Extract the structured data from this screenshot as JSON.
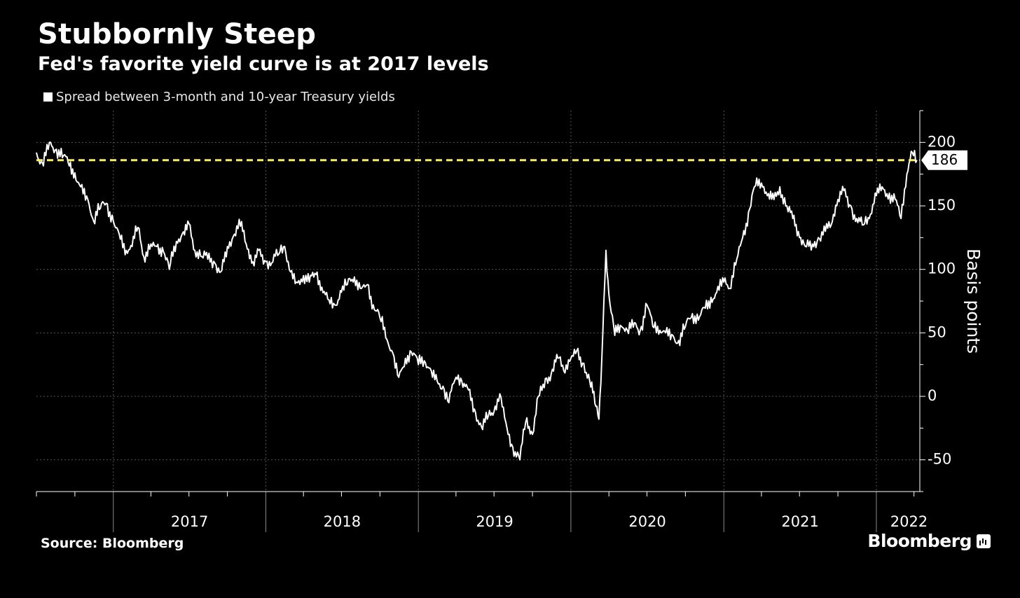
{
  "header": {
    "title": "Stubbornly Steep",
    "subtitle": "Fed's favorite yield curve is at 2017 levels"
  },
  "footer": {
    "source": "Source: Bloomberg",
    "brand": "Bloomberg",
    "brand_icon": "bar-chart-icon"
  },
  "colors": {
    "background": "#000000",
    "series": "#ffffff",
    "reference_line": "#f5ec6a",
    "grid": "#555555"
  },
  "chart_data": {
    "type": "line",
    "title": "Stubbornly Steep",
    "subtitle": "Fed's favorite yield curve is at 2017 levels",
    "ylabel": "Basis points",
    "ylim": [
      -75,
      225
    ],
    "yticks": [
      -50,
      0,
      50,
      100,
      150,
      200
    ],
    "x_range": [
      "2016-07-01",
      "2022-04-15"
    ],
    "x_year_labels": [
      "2017",
      "2018",
      "2019",
      "2020",
      "2021",
      "2022"
    ],
    "grid": true,
    "legend": "top-left",
    "reference_line": {
      "value": 186,
      "label": "186",
      "style": "dashed"
    },
    "series": [
      {
        "name": "Spread between 3-month and 10-year Treasury yields",
        "points": [
          [
            "2016-07-01",
            192
          ],
          [
            "2016-07-15",
            184
          ],
          [
            "2016-08-01",
            200
          ],
          [
            "2016-08-15",
            194
          ],
          [
            "2016-09-01",
            188
          ],
          [
            "2016-09-15",
            184
          ],
          [
            "2016-10-01",
            176
          ],
          [
            "2016-10-15",
            165
          ],
          [
            "2016-11-01",
            155
          ],
          [
            "2016-11-15",
            138
          ],
          [
            "2016-12-01",
            148
          ],
          [
            "2016-12-15",
            152
          ],
          [
            "2017-01-01",
            138
          ],
          [
            "2017-01-15",
            128
          ],
          [
            "2017-02-01",
            115
          ],
          [
            "2017-02-15",
            118
          ],
          [
            "2017-03-01",
            133
          ],
          [
            "2017-03-15",
            110
          ],
          [
            "2017-04-01",
            120
          ],
          [
            "2017-04-15",
            118
          ],
          [
            "2017-05-01",
            114
          ],
          [
            "2017-05-15",
            100
          ],
          [
            "2017-06-01",
            122
          ],
          [
            "2017-06-15",
            128
          ],
          [
            "2017-07-01",
            136
          ],
          [
            "2017-07-15",
            115
          ],
          [
            "2017-08-01",
            110
          ],
          [
            "2017-08-15",
            108
          ],
          [
            "2017-09-01",
            105
          ],
          [
            "2017-09-15",
            98
          ],
          [
            "2017-10-01",
            118
          ],
          [
            "2017-10-15",
            126
          ],
          [
            "2017-11-01",
            134
          ],
          [
            "2017-11-15",
            120
          ],
          [
            "2017-12-01",
            106
          ],
          [
            "2017-12-15",
            115
          ],
          [
            "2018-01-01",
            106
          ],
          [
            "2018-01-15",
            105
          ],
          [
            "2018-02-01",
            112
          ],
          [
            "2018-02-15",
            118
          ],
          [
            "2018-03-01",
            98
          ],
          [
            "2018-03-15",
            90
          ],
          [
            "2018-04-01",
            95
          ],
          [
            "2018-04-15",
            90
          ],
          [
            "2018-05-01",
            96
          ],
          [
            "2018-05-15",
            86
          ],
          [
            "2018-06-01",
            76
          ],
          [
            "2018-06-15",
            72
          ],
          [
            "2018-07-01",
            82
          ],
          [
            "2018-07-15",
            88
          ],
          [
            "2018-08-01",
            94
          ],
          [
            "2018-08-15",
            85
          ],
          [
            "2018-09-01",
            88
          ],
          [
            "2018-09-15",
            72
          ],
          [
            "2018-10-01",
            62
          ],
          [
            "2018-10-15",
            46
          ],
          [
            "2018-11-01",
            34
          ],
          [
            "2018-11-15",
            15
          ],
          [
            "2018-12-01",
            30
          ],
          [
            "2018-12-15",
            35
          ],
          [
            "2019-01-01",
            25
          ],
          [
            "2019-01-15",
            28
          ],
          [
            "2019-02-01",
            20
          ],
          [
            "2019-02-15",
            12
          ],
          [
            "2019-03-01",
            8
          ],
          [
            "2019-03-15",
            -5
          ],
          [
            "2019-04-01",
            15
          ],
          [
            "2019-04-15",
            12
          ],
          [
            "2019-05-01",
            5
          ],
          [
            "2019-05-15",
            -10
          ],
          [
            "2019-06-01",
            -24
          ],
          [
            "2019-06-15",
            -18
          ],
          [
            "2019-07-01",
            -12
          ],
          [
            "2019-07-15",
            2
          ],
          [
            "2019-08-01",
            -25
          ],
          [
            "2019-08-15",
            -40
          ],
          [
            "2019-09-01",
            -50
          ],
          [
            "2019-09-15",
            -20
          ],
          [
            "2019-10-01",
            -30
          ],
          [
            "2019-10-15",
            0
          ],
          [
            "2019-11-01",
            14
          ],
          [
            "2019-11-15",
            18
          ],
          [
            "2019-12-01",
            30
          ],
          [
            "2019-12-15",
            20
          ],
          [
            "2020-01-01",
            30
          ],
          [
            "2020-01-15",
            36
          ],
          [
            "2020-02-01",
            26
          ],
          [
            "2020-02-15",
            12
          ],
          [
            "2020-03-01",
            -8
          ],
          [
            "2020-03-08",
            -18
          ],
          [
            "2020-03-15",
            30
          ],
          [
            "2020-03-25",
            115
          ],
          [
            "2020-04-01",
            80
          ],
          [
            "2020-04-15",
            48
          ],
          [
            "2020-05-01",
            55
          ],
          [
            "2020-05-15",
            52
          ],
          [
            "2020-06-01",
            58
          ],
          [
            "2020-06-15",
            52
          ],
          [
            "2020-07-01",
            72
          ],
          [
            "2020-07-15",
            55
          ],
          [
            "2020-08-01",
            52
          ],
          [
            "2020-08-15",
            50
          ],
          [
            "2020-09-01",
            48
          ],
          [
            "2020-09-15",
            44
          ],
          [
            "2020-10-01",
            55
          ],
          [
            "2020-10-15",
            62
          ],
          [
            "2020-11-01",
            60
          ],
          [
            "2020-11-15",
            70
          ],
          [
            "2020-12-01",
            78
          ],
          [
            "2020-12-15",
            82
          ],
          [
            "2021-01-01",
            90
          ],
          [
            "2021-01-15",
            85
          ],
          [
            "2021-02-01",
            108
          ],
          [
            "2021-02-15",
            125
          ],
          [
            "2021-03-01",
            145
          ],
          [
            "2021-03-15",
            165
          ],
          [
            "2021-04-01",
            168
          ],
          [
            "2021-04-15",
            158
          ],
          [
            "2021-05-01",
            155
          ],
          [
            "2021-05-15",
            165
          ],
          [
            "2021-06-01",
            150
          ],
          [
            "2021-06-15",
            140
          ],
          [
            "2021-07-01",
            125
          ],
          [
            "2021-07-15",
            118
          ],
          [
            "2021-08-01",
            120
          ],
          [
            "2021-08-15",
            125
          ],
          [
            "2021-09-01",
            130
          ],
          [
            "2021-09-15",
            135
          ],
          [
            "2021-10-01",
            155
          ],
          [
            "2021-10-15",
            162
          ],
          [
            "2021-11-01",
            150
          ],
          [
            "2021-11-15",
            140
          ],
          [
            "2021-12-01",
            135
          ],
          [
            "2021-12-15",
            140
          ],
          [
            "2022-01-01",
            158
          ],
          [
            "2022-01-15",
            165
          ],
          [
            "2022-02-01",
            160
          ],
          [
            "2022-02-15",
            155
          ],
          [
            "2022-03-01",
            140
          ],
          [
            "2022-03-15",
            175
          ],
          [
            "2022-03-28",
            192
          ],
          [
            "2022-04-08",
            186
          ]
        ]
      }
    ]
  }
}
